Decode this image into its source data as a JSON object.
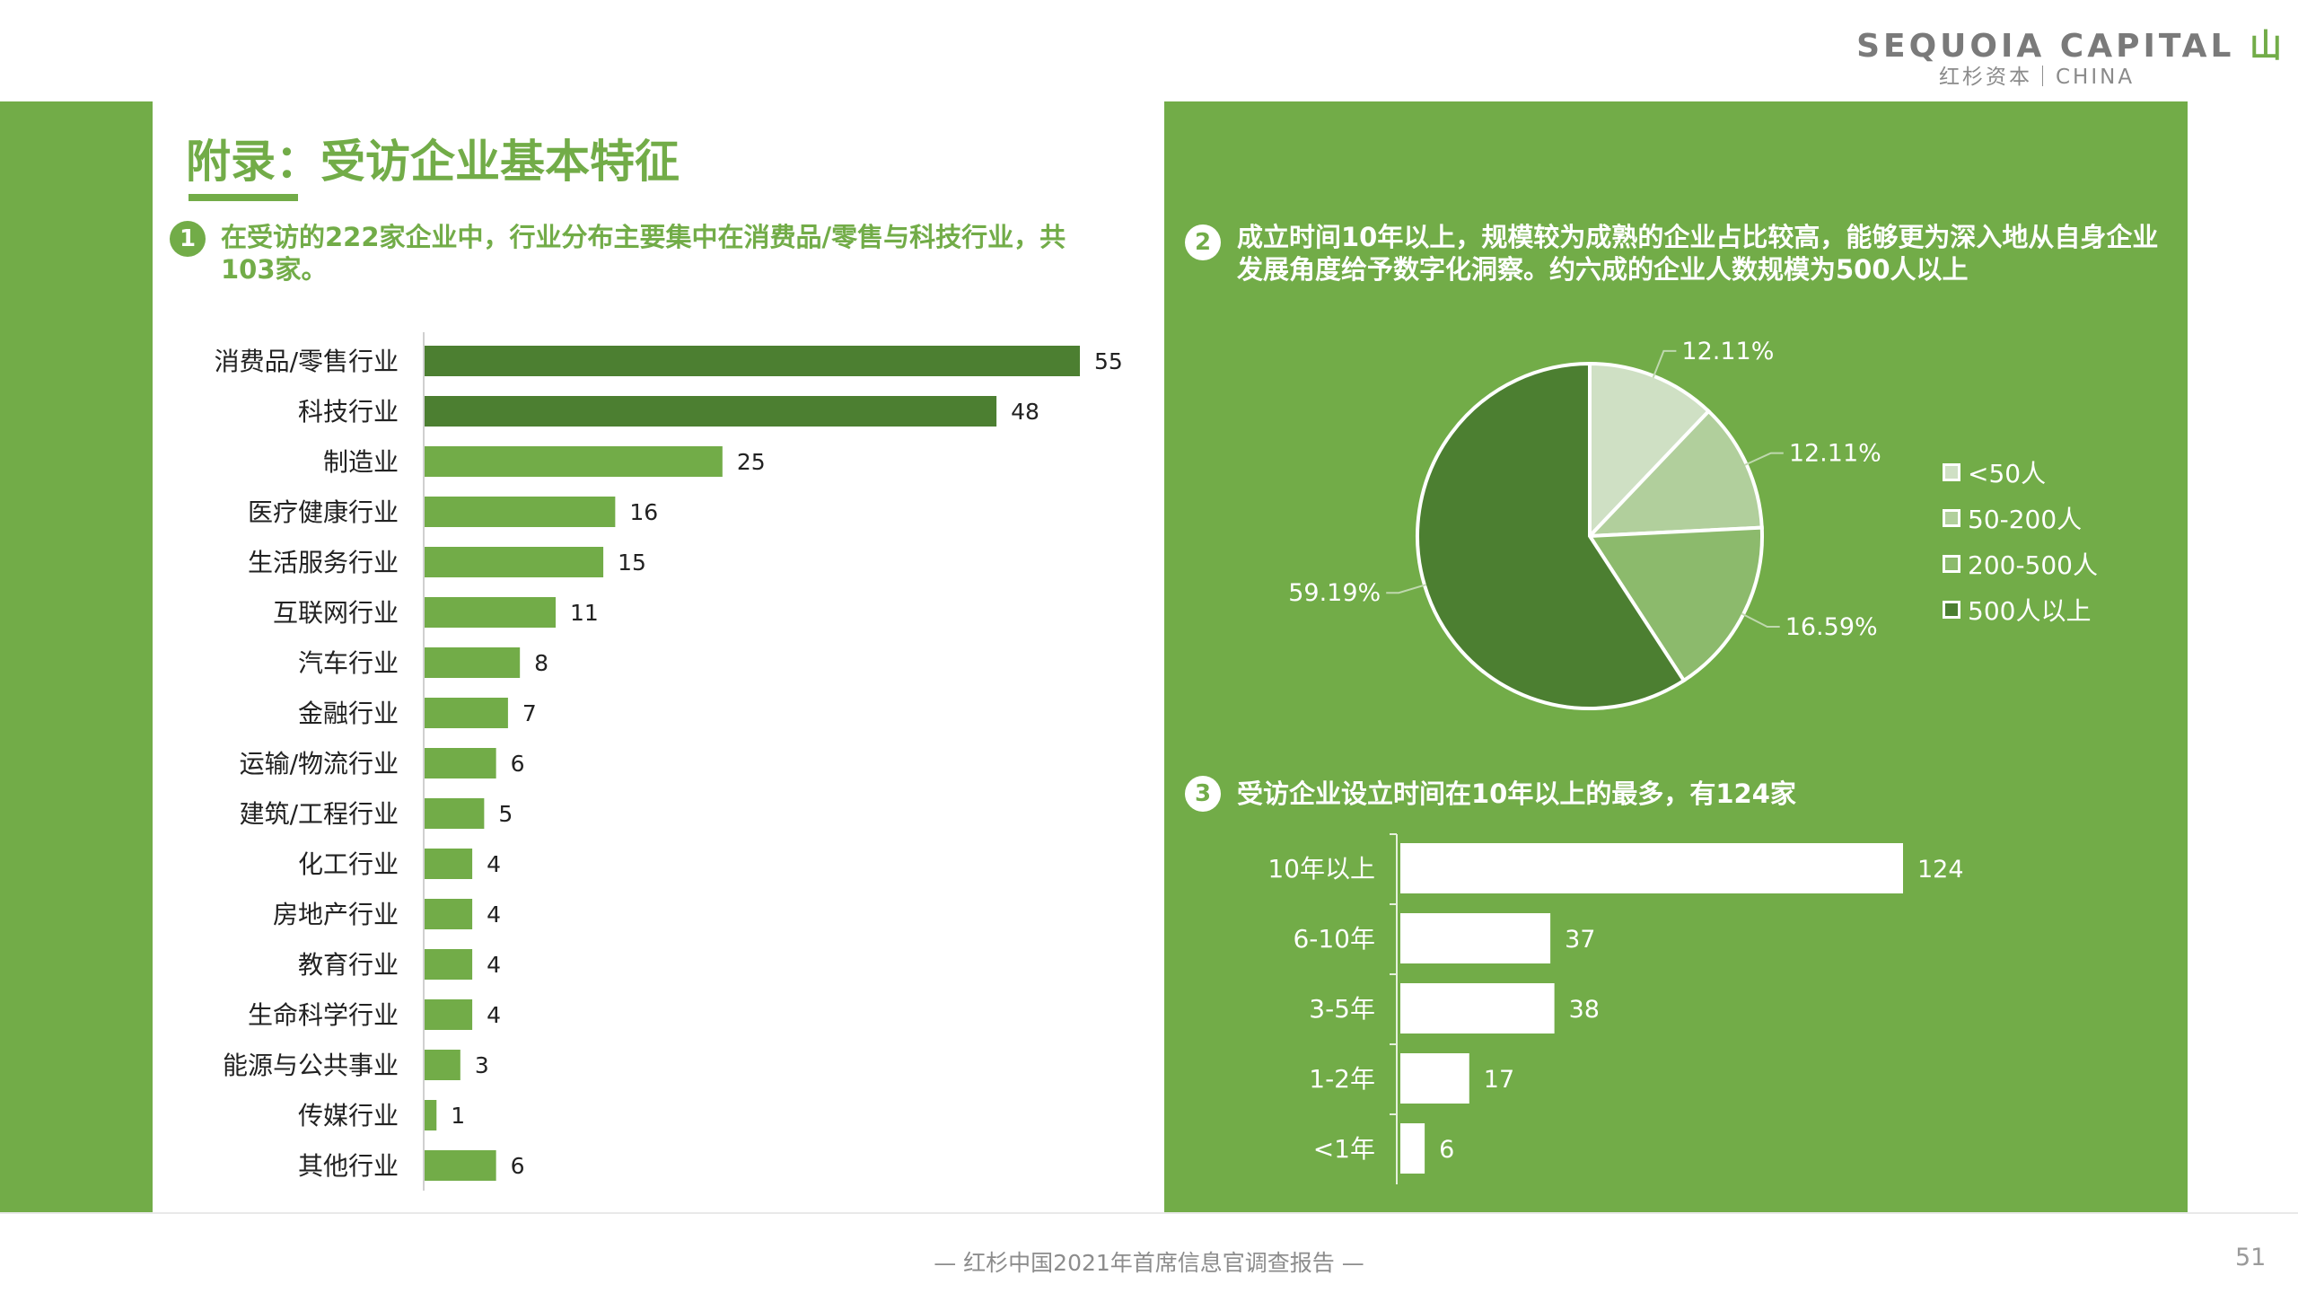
{
  "brand": {
    "name": "SEQUOIA CAPITAL",
    "mark": "山",
    "cn": "红杉资本｜CHINA"
  },
  "page_title": "附录：受访企业基本特征",
  "sections": [
    {
      "number": "1",
      "text": "在受访的222家企业中，行业分布主要集中在消费品/零售与科技行业，共103家。"
    },
    {
      "number": "2",
      "text": "成立时间10年以上，规模较为成熟的企业占比较高，能够更为深入地从自身企业发展角度给予数字化洞察。约六成的企业人数规模为500人以上"
    },
    {
      "number": "3",
      "text": "受访企业设立时间在10年以上的最多，有124家"
    }
  ],
  "footer": "— 红杉中国2021年首席信息官调查报告 —",
  "page_number": "51",
  "colors": {
    "green": "#72ac48",
    "dark_green": "#4c7f31",
    "white": "#ffffff"
  },
  "chart_data": [
    {
      "type": "bar",
      "orientation": "horizontal",
      "title": "",
      "categories": [
        "消费品/零售行业",
        "科技行业",
        "制造业",
        "医疗健康行业",
        "生活服务行业",
        "互联网行业",
        "汽车行业",
        "金融行业",
        "运输/物流行业",
        "建筑/工程行业",
        "化工行业",
        "房地产行业",
        "教育行业",
        "生命科学行业",
        "能源与公共事业",
        "传媒行业",
        "其他行业"
      ],
      "values": [
        55,
        48,
        25,
        16,
        15,
        11,
        8,
        7,
        6,
        5,
        4,
        4,
        4,
        4,
        3,
        1,
        6
      ],
      "highlight": [
        true,
        true,
        false,
        false,
        false,
        false,
        false,
        false,
        false,
        false,
        false,
        false,
        false,
        false,
        false,
        false,
        false
      ],
      "xlim": [
        0,
        60
      ],
      "data_labels": true,
      "grid": false
    },
    {
      "type": "pie",
      "title": "",
      "labels": [
        "<50人",
        "50-200人",
        "200-500人",
        "500人以上"
      ],
      "values": [
        12.11,
        12.11,
        16.59,
        59.19
      ],
      "value_labels": [
        "12.11%",
        "12.11%",
        "16.59%",
        "59.19%"
      ],
      "colors": [
        "#cfe0c4",
        "#b1cf9c",
        "#8cba6c",
        "#4c7f31"
      ],
      "legend": "right"
    },
    {
      "type": "bar",
      "orientation": "horizontal",
      "title": "",
      "categories": [
        "10年以上",
        "6-10年",
        "3-5年",
        "1-2年",
        "<1年"
      ],
      "values": [
        124,
        37,
        38,
        17,
        6
      ],
      "xlim": [
        0,
        130
      ],
      "data_labels": true,
      "grid": false
    }
  ]
}
